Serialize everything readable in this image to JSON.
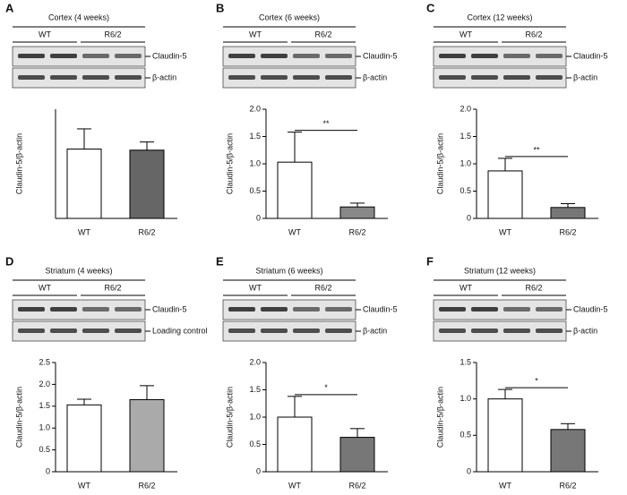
{
  "chart_data": [
    {
      "type": "bar",
      "panel": "A",
      "blot_title": "Cortex (4 weeks)",
      "groups": [
        "WT",
        "R6/2"
      ],
      "band_labels": [
        "Claudin-5",
        "β-actin"
      ],
      "ylabel": "Claudin-5/β-actin",
      "categories": [
        "WT",
        "R6/2"
      ],
      "values": [
        1.27,
        1.25
      ],
      "errors": [
        0.37,
        0.15
      ],
      "colors": [
        "#ffffff",
        "#666666"
      ],
      "ylim": [
        0,
        2.0
      ]
    },
    {
      "type": "bar",
      "panel": "B",
      "blot_title": "Cortex (6 weeks)",
      "groups": [
        "WT",
        "R6/2"
      ],
      "band_labels": [
        "Claudin-5",
        "β-actin"
      ],
      "ylabel": "Claudin-5/β-actin",
      "categories": [
        "WT",
        "R6/2"
      ],
      "values": [
        1.03,
        0.21
      ],
      "errors": [
        0.55,
        0.07
      ],
      "colors": [
        "#ffffff",
        "#888888"
      ],
      "ylim": [
        0,
        2.0
      ],
      "yticks": [
        0,
        0.5,
        {
          "value": 1,
          "label": "1.0"
        },
        1.5,
        {
          "value": 2,
          "label": "2.0"
        }
      ],
      "significance": "**"
    },
    {
      "type": "bar",
      "panel": "C",
      "blot_title": "Cortex (12 weeks)",
      "groups": [
        "WT",
        "R6/2"
      ],
      "band_labels": [
        "Claudin-5",
        "β-actin"
      ],
      "ylabel": "Claudin-5/β-actin",
      "categories": [
        "WT",
        "R6/2"
      ],
      "values": [
        0.87,
        0.2
      ],
      "errors": [
        0.23,
        0.07
      ],
      "colors": [
        "#ffffff",
        "#777777"
      ],
      "ylim": [
        0,
        2.0
      ],
      "yticks": [
        0,
        0.5,
        {
          "value": 1,
          "label": "1.0"
        },
        1.5,
        {
          "value": 2,
          "label": "2.0"
        }
      ],
      "significance": "**"
    },
    {
      "type": "bar",
      "panel": "D",
      "blot_title": "Striatum (4 weeks)",
      "groups": [
        "WT",
        "R6/2"
      ],
      "band_labels": [
        "Claudin-5",
        "Loading control"
      ],
      "ylabel": "Claudin-5/β-actin",
      "categories": [
        "WT",
        "R6/2"
      ],
      "values": [
        1.53,
        1.65
      ],
      "errors": [
        0.13,
        0.32
      ],
      "colors": [
        "#ffffff",
        "#aaaaaa"
      ],
      "ylim": [
        0,
        2.5
      ],
      "yticks": [
        0,
        0.5,
        {
          "value": 1,
          "label": "1.0"
        },
        1.5,
        {
          "value": 2,
          "label": "2.0"
        },
        2.5
      ]
    },
    {
      "type": "bar",
      "panel": "E",
      "blot_title": "Striatum (6 weeks)",
      "groups": [
        "WT",
        "R6/2"
      ],
      "band_labels": [
        "Claudin-5",
        "β-actin"
      ],
      "ylabel": "Claudin-5/β-actin",
      "categories": [
        "WT",
        "R6/2"
      ],
      "values": [
        1.0,
        0.63
      ],
      "errors": [
        0.38,
        0.16
      ],
      "colors": [
        "#ffffff",
        "#777777"
      ],
      "ylim": [
        0,
        2.0
      ],
      "yticks": [
        0,
        0.5,
        {
          "value": 1,
          "label": "1.0"
        },
        1.5,
        {
          "value": 2,
          "label": "2.0"
        }
      ],
      "significance": "*"
    },
    {
      "type": "bar",
      "panel": "F",
      "blot_title": "Striatum (12 weeks)",
      "groups": [
        "WT",
        "R6/2"
      ],
      "band_labels": [
        "Claudin-5",
        "β-actin"
      ],
      "ylabel": "Claudin-5/β-actin",
      "categories": [
        "WT",
        "R6/2"
      ],
      "values": [
        1.0,
        0.58
      ],
      "errors": [
        0.13,
        0.08
      ],
      "colors": [
        "#ffffff",
        "#777777"
      ],
      "ylim": [
        0,
        1.5
      ],
      "yticks": [
        0,
        0.5,
        {
          "value": 1,
          "label": "1.0"
        },
        1.5
      ],
      "significance": "*"
    }
  ]
}
